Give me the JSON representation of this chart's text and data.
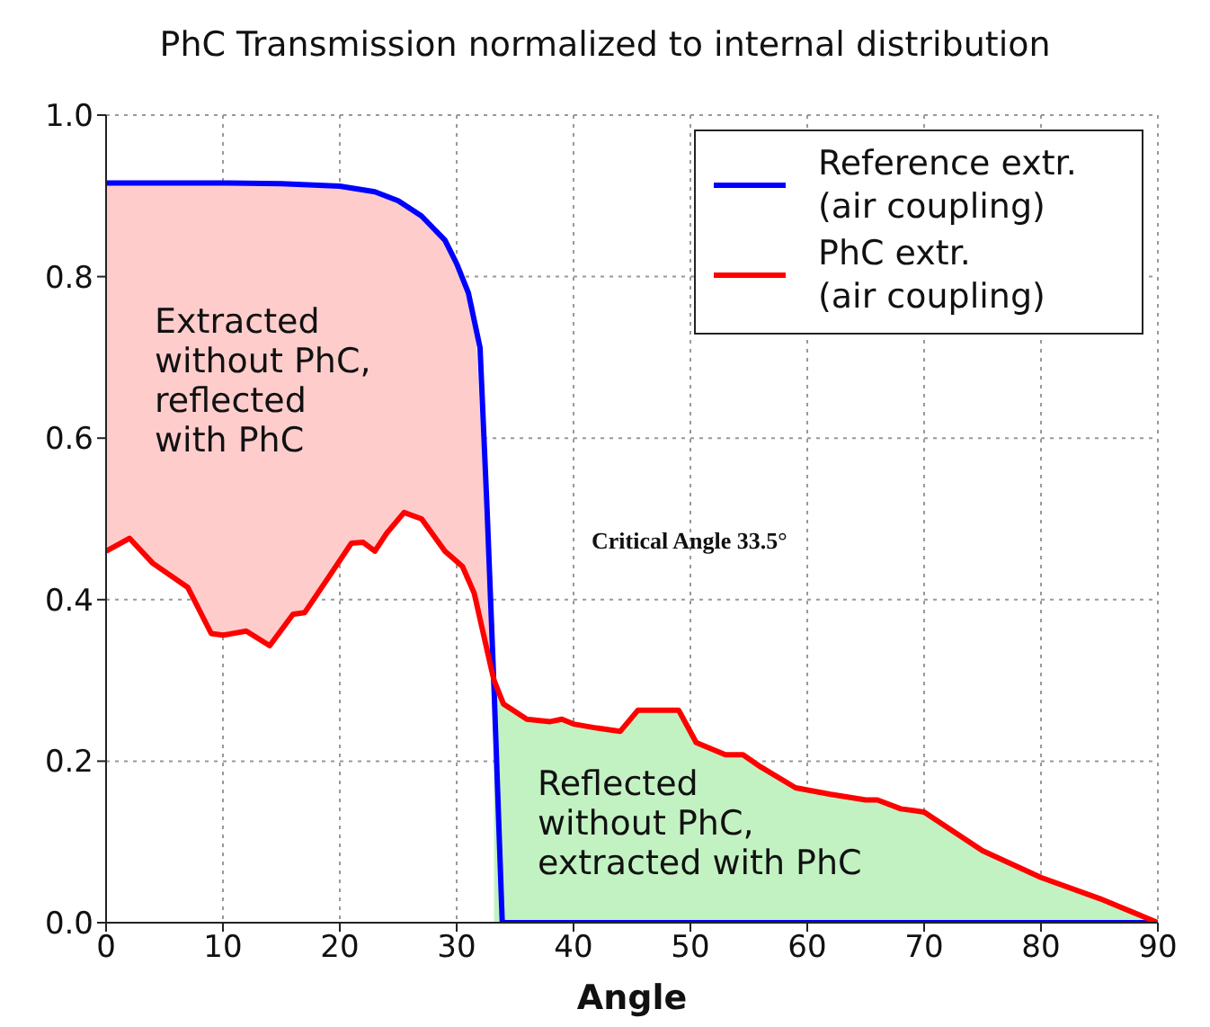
{
  "chart_data": {
    "type": "line",
    "title": "PhC Transmission normalized to internal distribution",
    "xlabel": "Angle",
    "xlim": [
      0,
      90
    ],
    "xticks": [
      0,
      10,
      20,
      30,
      40,
      50,
      60,
      70,
      80,
      90
    ],
    "ylim": [
      0,
      1
    ],
    "yticks": [
      {
        "value": 0,
        "label": "0.0"
      },
      {
        "value": 0.2,
        "label": "0.2"
      },
      {
        "value": 0.4,
        "label": "0.4"
      },
      {
        "value": 0.6,
        "label": "0.6"
      },
      {
        "value": 0.8,
        "label": "0.8"
      },
      {
        "value": 1,
        "label": "1.0"
      }
    ],
    "grid": true,
    "legend": "top right",
    "line_style": "solid",
    "marker": "none",
    "series": [
      {
        "type": "area",
        "color": "#c2f2c2",
        "x": [
          33.2,
          34,
          36,
          38,
          39,
          40,
          42,
          44,
          45.5,
          49,
          50.5,
          53,
          54.5,
          56,
          59,
          62,
          65,
          66,
          68,
          70,
          75,
          80,
          85,
          90
        ],
        "values": [
          0.3,
          0.271,
          0.252,
          0.249,
          0.252,
          0.246,
          0.241,
          0.237,
          0.263,
          0.263,
          0.223,
          0.208,
          0.208,
          0.193,
          0.167,
          0.159,
          0.152,
          0.152,
          0.141,
          0.137,
          0.089,
          0.056,
          0.03,
          0
        ]
      },
      {
        "name": "Reference extr.\n(air coupling)",
        "color": "#0000ff",
        "x": [
          0,
          5,
          10,
          15,
          20,
          23,
          25,
          27,
          28,
          29,
          30,
          31,
          32,
          32.6,
          33.2,
          33.9,
          40,
          50,
          60,
          70,
          80,
          90
        ],
        "values": [
          0.916,
          0.916,
          0.916,
          0.915,
          0.912,
          0.905,
          0.894,
          0.875,
          0.86,
          0.845,
          0.816,
          0.78,
          0.712,
          0.512,
          0.289,
          0,
          0,
          0,
          0,
          0,
          0,
          0
        ]
      },
      {
        "name": "PhC extr.\n(air coupling)",
        "color": "#ff0000",
        "x": [
          0,
          2,
          4,
          7,
          9,
          10,
          12,
          14,
          16,
          17,
          19,
          21,
          22,
          23,
          24,
          25.5,
          27,
          29,
          30.5,
          31.5,
          33,
          33.2,
          34,
          36,
          38,
          39,
          40,
          42,
          44,
          45.5,
          49,
          50.5,
          53,
          54.5,
          56,
          59,
          62,
          65,
          66,
          68,
          70,
          75,
          80,
          85,
          90
        ],
        "values": [
          0.46,
          0.476,
          0.445,
          0.415,
          0.358,
          0.356,
          0.361,
          0.343,
          0.382,
          0.384,
          0.427,
          0.47,
          0.471,
          0.46,
          0.482,
          0.508,
          0.5,
          0.46,
          0.441,
          0.408,
          0.312,
          0.3,
          0.271,
          0.252,
          0.249,
          0.252,
          0.246,
          0.241,
          0.237,
          0.263,
          0.263,
          0.223,
          0.208,
          0.208,
          0.193,
          0.167,
          0.159,
          0.152,
          0.152,
          0.141,
          0.137,
          0.089,
          0.056,
          0.03,
          0
        ],
        "lower": [
          0.46,
          0.476,
          0.445,
          0.415,
          0.358,
          0.356,
          0.361,
          0.343,
          0.382,
          0.384,
          0.427,
          0.47,
          0.471,
          0.46,
          0.482,
          0.508,
          0.5,
          0.46,
          0.441,
          0.408,
          0.312,
          0.3,
          null,
          null,
          null,
          null,
          null,
          null,
          null,
          null,
          null,
          null,
          null,
          null,
          null,
          null,
          null,
          null,
          null,
          null,
          null,
          null,
          null,
          null,
          null
        ],
        "upper": [
          0.916,
          0.916,
          0.916,
          0.916,
          0.916,
          0.916,
          0.916,
          0.916,
          0.915,
          0.915,
          0.913,
          0.911,
          0.909,
          0.905,
          0.9,
          0.89,
          0.875,
          0.845,
          0.8,
          0.765,
          0.36,
          0.3,
          null,
          null,
          null,
          null,
          null,
          null,
          null,
          null,
          null,
          null,
          null,
          null,
          null,
          null,
          null,
          null,
          null,
          null,
          null,
          null,
          null,
          null,
          null
        ]
      }
    ],
    "annotations": [
      "Extracted\nwithout PhC,\nreflected\nwith PhC",
      "Critical Angle 33.5°",
      "Reflected\nwithout PhC,\nextracted with PhC"
    ]
  }
}
